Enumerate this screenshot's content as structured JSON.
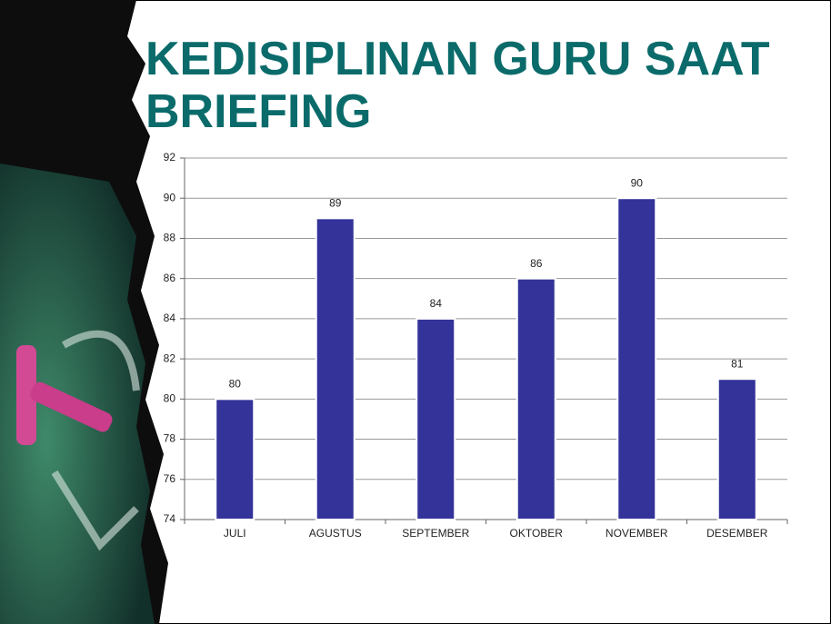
{
  "chart_data": {
    "type": "bar",
    "title": "KEDISIPLINAN GURU SAAT BRIEFING",
    "categories": [
      "JULI",
      "AGUSTUS",
      "SEPTEMBER",
      "OKTOBER",
      "NOVEMBER",
      "DESEMBER"
    ],
    "values": [
      80,
      89,
      84,
      86,
      90,
      81
    ],
    "color": "#333399",
    "ylim": [
      74,
      92
    ],
    "yticks": [
      74,
      76,
      78,
      80,
      82,
      84,
      86,
      88,
      90,
      92
    ],
    "grid": true
  }
}
